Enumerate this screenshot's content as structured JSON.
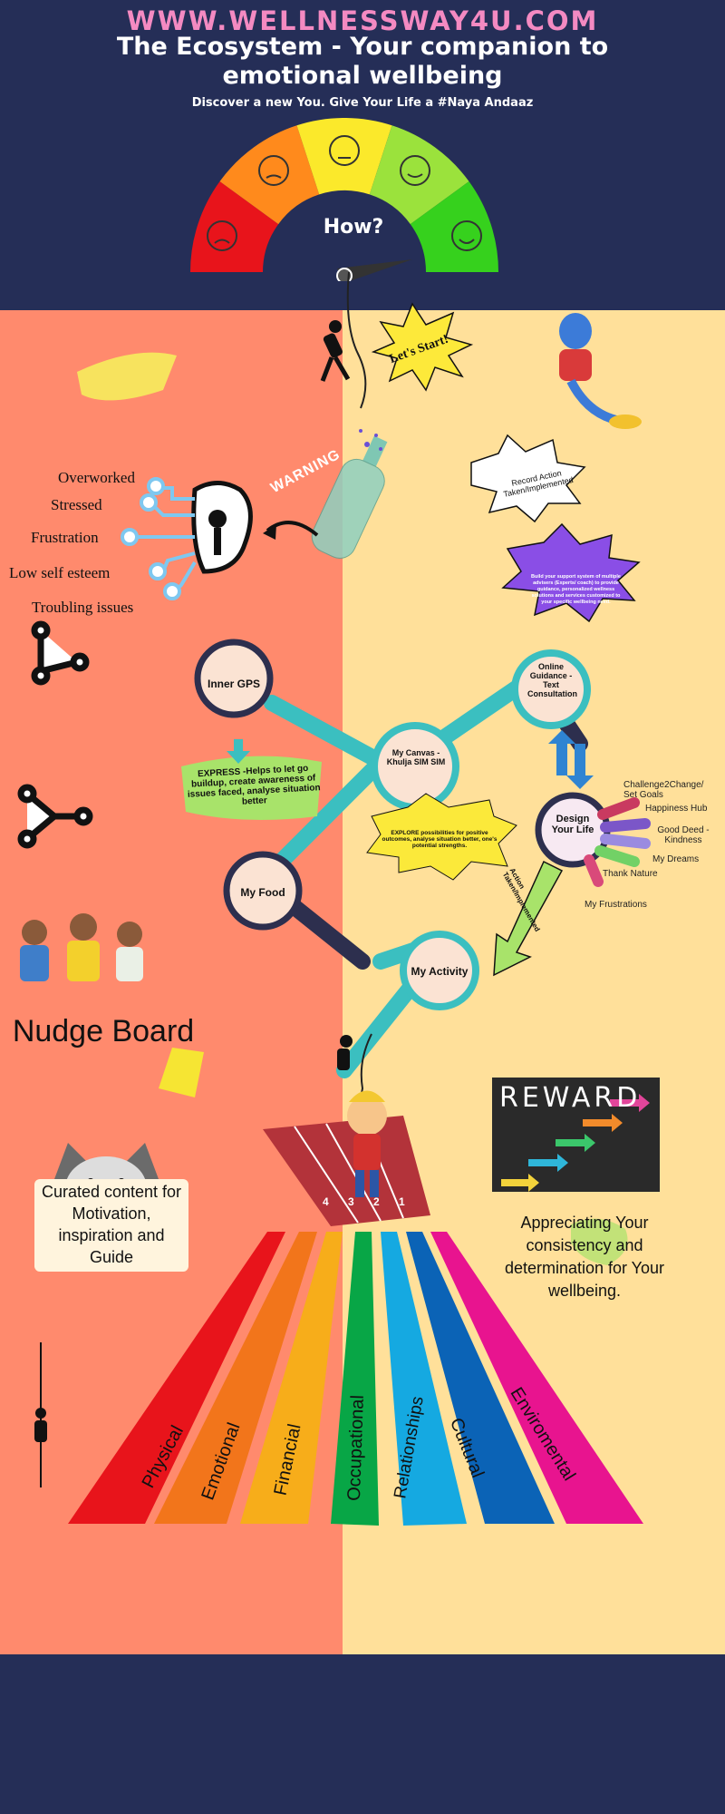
{
  "header": {
    "site_url": "WWW.WELLNESSWAY4U.COM",
    "title": "The Ecosystem - Your companion to emotional wellbeing",
    "tagline": "Discover a new You. Give Your Life a #Naya Andaaz",
    "gauge_label": "How?"
  },
  "callouts": {
    "lets_start": "Let's Start!",
    "warning": "WARNING",
    "record_action": "Record Action Taken/Implemented",
    "support_system": "Build your support system of multiple advisers (Experts/ coach) to provide guidance, personalized wellness solutions and services customized to your specific wellbeing need."
  },
  "issues": [
    "Overworked",
    "Stressed",
    "Frustration",
    "Low self esteem",
    "Troubling issues"
  ],
  "nodes": {
    "inner_gps": "Inner GPS",
    "my_canvas": "My Canvas - Khulja SIM SIM",
    "my_food": "My Food",
    "my_activity": "My Activity",
    "online_guidance": "Online Guidance -Text Consultation",
    "design_life": "Design Your Life"
  },
  "notes": {
    "express": "EXPRESS -Helps to let go buildup, create awareness of issues faced, analyse situation better",
    "explore": "EXPLORE possibilities for positive outcomes, analyse situation better, one's potential strengths.",
    "action_taken": "Action Taken/Implemented"
  },
  "design_items": [
    "Challenge2Change/ Set Goals",
    "Happiness Hub",
    "Good Deed - Kindness",
    "My Dreams",
    "Thank Nature",
    "My Frustrations"
  ],
  "nudge": {
    "title": "Nudge Board",
    "curated": "Curated content for Motivation, inspiration and Guide"
  },
  "reward": {
    "word": "REWARD",
    "appreciation": "Appreciating Your consistency and determination for Your wellbeing."
  },
  "track_lanes": [
    "1",
    "2",
    "3",
    "4"
  ],
  "dimensions": [
    "Physical",
    "Emotional",
    "Financial",
    "Occupational",
    "Relationships",
    "Cultural",
    "Enviromental"
  ],
  "colors": {
    "navy": "#252e57",
    "coral": "#ff8a6d",
    "cream": "#ffe09a",
    "url_pink": "#f48ac2",
    "teal": "#3bbfc0",
    "gauge": [
      "#e8141b",
      "#ff8a1c",
      "#fbe92b",
      "#9be23c",
      "#36d11d"
    ],
    "dimension_colors": [
      "#e8141b",
      "#f2751b",
      "#f7ad1a",
      "#08a646",
      "#15a9e1",
      "#0b63b6",
      "#e8148f"
    ]
  }
}
